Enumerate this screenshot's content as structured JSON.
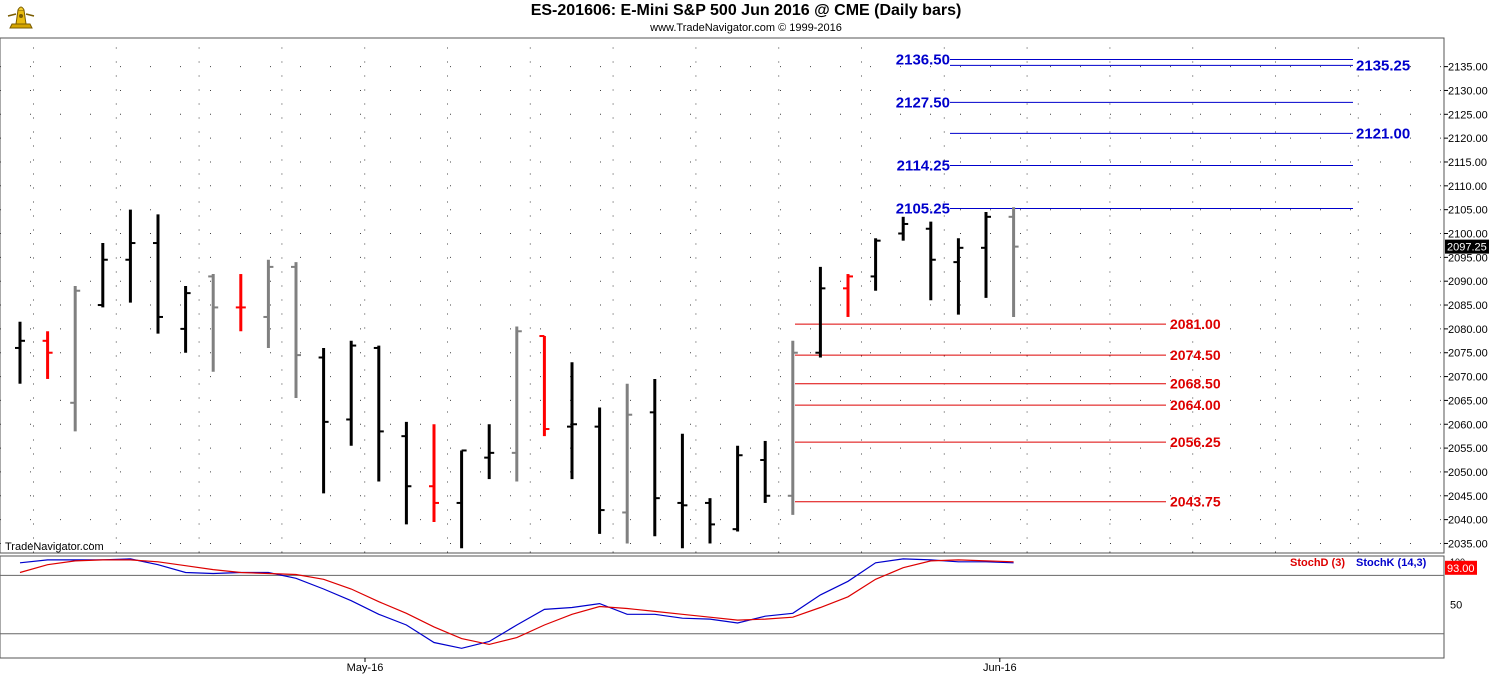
{
  "header": {
    "title": "ES-201606:  E-Mini S&P 500 Jun 2016 @ CME  (Daily bars)",
    "subtitle": "www.TradeNavigator.com © 1999-2016"
  },
  "watermark": "TradeNavigator.com",
  "colors": {
    "up_bar": "#000000",
    "down_bar": "#ff0000",
    "neutral_bar": "#808080",
    "resistance": "#0000cc",
    "support": "#dd0000",
    "stoch_k": "#0000cc",
    "stoch_d": "#dd0000",
    "last_price_bg": "#000000",
    "stoch_value_bg": "#ff0000"
  },
  "chart_data": [
    {
      "type": "ohlc",
      "title": "ES-201606:  E-Mini S&P 500 Jun 2016 @ CME  (Daily bars)",
      "ylim": [
        2033,
        2141
      ],
      "y_ticks": [
        2035,
        2040,
        2045,
        2050,
        2055,
        2060,
        2065,
        2070,
        2075,
        2080,
        2085,
        2090,
        2095,
        2100,
        2105,
        2110,
        2115,
        2120,
        2125,
        2130,
        2135
      ],
      "x_labels": [
        {
          "label": "May-16",
          "bar_index": 12.5
        },
        {
          "label": "Jun-16",
          "bar_index": 35.5
        }
      ],
      "last_price": "2097.25",
      "bars": [
        {
          "o": 2076.0,
          "h": 2081.5,
          "l": 2068.5,
          "c": 2077.5,
          "color": "black"
        },
        {
          "o": 2077.5,
          "h": 2079.5,
          "l": 2069.5,
          "c": 2075.0,
          "color": "red"
        },
        {
          "o": 2064.5,
          "h": 2089.0,
          "l": 2058.5,
          "c": 2088.0,
          "color": "gray"
        },
        {
          "o": 2085.0,
          "h": 2098.0,
          "l": 2084.5,
          "c": 2094.5,
          "color": "black"
        },
        {
          "o": 2094.5,
          "h": 2105.0,
          "l": 2085.5,
          "c": 2098.0,
          "color": "black"
        },
        {
          "o": 2098.0,
          "h": 2104.0,
          "l": 2079.0,
          "c": 2082.5,
          "color": "black"
        },
        {
          "o": 2080.0,
          "h": 2089.0,
          "l": 2075.0,
          "c": 2087.5,
          "color": "black"
        },
        {
          "o": 2091.0,
          "h": 2091.5,
          "l": 2071.0,
          "c": 2084.5,
          "color": "gray"
        },
        {
          "o": 2084.5,
          "h": 2091.5,
          "l": 2079.5,
          "c": 2084.5,
          "color": "red"
        },
        {
          "o": 2082.5,
          "h": 2094.5,
          "l": 2076.0,
          "c": 2093.0,
          "color": "gray"
        },
        {
          "o": 2093.0,
          "h": 2094.0,
          "l": 2065.5,
          "c": 2074.5,
          "color": "gray"
        },
        {
          "o": 2074.0,
          "h": 2076.0,
          "l": 2045.5,
          "c": 2060.5,
          "color": "black"
        },
        {
          "o": 2061.0,
          "h": 2077.5,
          "l": 2055.5,
          "c": 2076.5,
          "color": "black"
        },
        {
          "o": 2076.0,
          "h": 2076.5,
          "l": 2048.0,
          "c": 2058.5,
          "color": "black"
        },
        {
          "o": 2057.5,
          "h": 2060.5,
          "l": 2039.0,
          "c": 2047.0,
          "color": "black"
        },
        {
          "o": 2047.0,
          "h": 2060.0,
          "l": 2039.5,
          "c": 2043.5,
          "color": "red"
        },
        {
          "o": 2043.5,
          "h": 2054.5,
          "l": 2034.0,
          "c": 2054.5,
          "color": "black"
        },
        {
          "o": 2053.0,
          "h": 2060.0,
          "l": 2048.5,
          "c": 2054.0,
          "color": "black"
        },
        {
          "o": 2054.0,
          "h": 2080.5,
          "l": 2048.0,
          "c": 2079.5,
          "color": "gray"
        },
        {
          "o": 2078.5,
          "h": 2078.5,
          "l": 2057.5,
          "c": 2059.0,
          "color": "red"
        },
        {
          "o": 2059.5,
          "h": 2073.0,
          "l": 2048.5,
          "c": 2060.0,
          "color": "black"
        },
        {
          "o": 2059.5,
          "h": 2063.5,
          "l": 2037.0,
          "c": 2042.0,
          "color": "black"
        },
        {
          "o": 2041.5,
          "h": 2068.5,
          "l": 2035.0,
          "c": 2062.0,
          "color": "gray"
        },
        {
          "o": 2062.5,
          "h": 2069.5,
          "l": 2036.5,
          "c": 2044.5,
          "color": "black"
        },
        {
          "o": 2043.5,
          "h": 2058.0,
          "l": 2034.0,
          "c": 2043.0,
          "color": "black"
        },
        {
          "o": 2043.5,
          "h": 2044.5,
          "l": 2035.0,
          "c": 2039.0,
          "color": "black"
        },
        {
          "o": 2038.0,
          "h": 2055.5,
          "l": 2037.5,
          "c": 2053.5,
          "color": "black"
        },
        {
          "o": 2052.5,
          "h": 2056.5,
          "l": 2043.5,
          "c": 2045.0,
          "color": "black"
        },
        {
          "o": 2045.0,
          "h": 2077.5,
          "l": 2041.0,
          "c": 2075.0,
          "color": "gray"
        },
        {
          "o": 2075.0,
          "h": 2093.0,
          "l": 2074.0,
          "c": 2088.5,
          "color": "black"
        },
        {
          "o": 2088.5,
          "h": 2091.5,
          "l": 2082.5,
          "c": 2091.0,
          "color": "red"
        },
        {
          "o": 2091.0,
          "h": 2099.0,
          "l": 2088.0,
          "c": 2098.5,
          "color": "black"
        },
        {
          "o": 2100.0,
          "h": 2103.5,
          "l": 2098.5,
          "c": 2102.0,
          "color": "black"
        },
        {
          "o": 2101.0,
          "h": 2102.5,
          "l": 2086.0,
          "c": 2094.5,
          "color": "black"
        },
        {
          "o": 2094.0,
          "h": 2099.0,
          "l": 2083.0,
          "c": 2097.0,
          "color": "black"
        },
        {
          "o": 2097.0,
          "h": 2104.5,
          "l": 2086.5,
          "c": 2103.5,
          "color": "black"
        },
        {
          "o": 2103.5,
          "h": 2105.5,
          "l": 2082.5,
          "c": 2097.25,
          "color": "gray"
        }
      ],
      "resistance_levels": [
        {
          "price": 2136.5,
          "label": "2136.50",
          "side": "left"
        },
        {
          "price": 2135.25,
          "label": "2135.25",
          "side": "right"
        },
        {
          "price": 2127.5,
          "label": "2127.50",
          "side": "left"
        },
        {
          "price": 2121.0,
          "label": "2121.00",
          "side": "right"
        },
        {
          "price": 2114.25,
          "label": "2114.25",
          "side": "left"
        },
        {
          "price": 2105.25,
          "label": "2105.25",
          "side": "left"
        }
      ],
      "support_levels": [
        {
          "price": 2081.0,
          "label": "2081.00"
        },
        {
          "price": 2074.5,
          "label": "2074.50"
        },
        {
          "price": 2068.5,
          "label": "2068.50"
        },
        {
          "price": 2064.0,
          "label": "2064.00"
        },
        {
          "price": 2056.25,
          "label": "2056.25"
        },
        {
          "price": 2043.75,
          "label": "2043.75"
        }
      ]
    },
    {
      "type": "line",
      "ylim": [
        -5,
        100
      ],
      "y_ticks": [
        50
      ],
      "top_label": "100",
      "reference_lines": [
        80,
        20
      ],
      "last_value": "93.00",
      "series": [
        {
          "name": "StochK (14,3)",
          "color": "#0000cc",
          "values": [
            93,
            96,
            96,
            96,
            97,
            91,
            83,
            82,
            83,
            83,
            77,
            66,
            54,
            40,
            29,
            11,
            5,
            12,
            29,
            45,
            47,
            51,
            40,
            40,
            36,
            35,
            31,
            38,
            41,
            60,
            74,
            93,
            97,
            96,
            94,
            94,
            93
          ]
        },
        {
          "name": "StochD (3)",
          "color": "#dd0000",
          "values": [
            83,
            91,
            95,
            96,
            96,
            94,
            90,
            86,
            83,
            82,
            81,
            76,
            66,
            53,
            41,
            27,
            15,
            9,
            16,
            29,
            40,
            48,
            46,
            43,
            40,
            37,
            34,
            35,
            37,
            47,
            58,
            76,
            88,
            95,
            96,
            95,
            94
          ]
        }
      ]
    }
  ]
}
